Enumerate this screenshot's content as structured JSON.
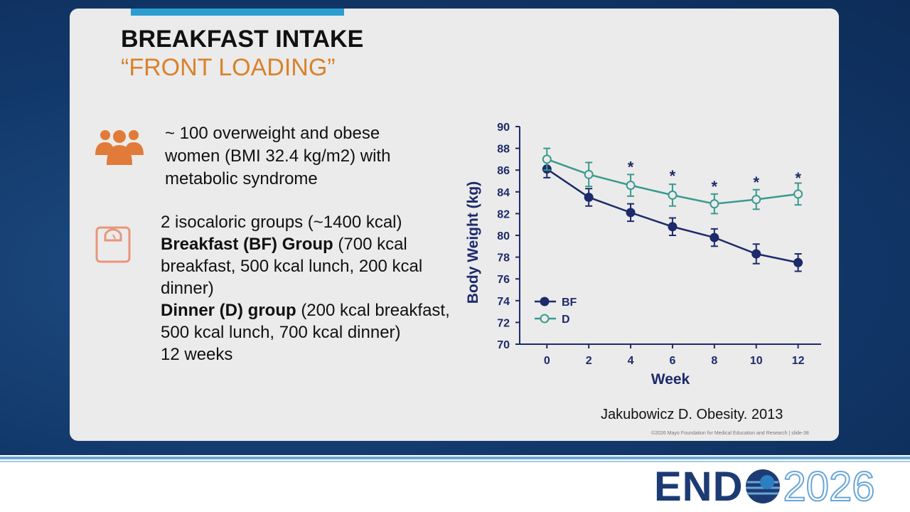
{
  "slide": {
    "title": "BREAKFAST INTAKE",
    "subtitle": "“FRONT LOADING”",
    "point1": "~ 100 overweight and obese women (BMI 32.4 kg/m2) with metabolic syndrome",
    "point2": {
      "intro": "2 isocaloric groups (~1400 kcal)",
      "group1": {
        "label": "Breakfast (BF) Group",
        "detail": "(700 kcal breakfast, 500 kcal lunch, 200 kcal dinner)"
      },
      "group2": {
        "label": "Dinner (D) group",
        "detail": "(200 kcal breakfast, 500 kcal lunch, 700 kcal dinner)"
      },
      "duration": "12 weeks"
    },
    "citation": "Jakubowicz D. Obesity. 2013",
    "copyright": "©2026 Mayo Foundation for Medical Education and Research  |  slide-38"
  },
  "brand": {
    "prefix": "END",
    "year": "2026"
  },
  "chart_data": {
    "type": "line",
    "x_label": "Week",
    "y_label": "Body Weight (kg)",
    "x": [
      0,
      2,
      4,
      6,
      8,
      10,
      12
    ],
    "series": [
      {
        "name": "BF",
        "color": "#1d2a6b",
        "marker": "filled",
        "values": [
          86.1,
          83.5,
          82.1,
          80.8,
          79.8,
          78.3,
          77.5
        ],
        "errors": [
          0.8,
          0.8,
          0.8,
          0.8,
          0.8,
          0.9,
          0.8
        ]
      },
      {
        "name": "D",
        "color": "#3a9a8e",
        "marker": "open",
        "values": [
          87.0,
          85.6,
          84.6,
          83.7,
          82.9,
          83.3,
          83.8
        ],
        "errors": [
          1.0,
          1.1,
          1.0,
          1.0,
          0.9,
          0.9,
          1.0
        ]
      }
    ],
    "annotations": [
      {
        "x": 4,
        "y": 86.3,
        "text": "*"
      },
      {
        "x": 6,
        "y": 85.5,
        "text": "*"
      },
      {
        "x": 8,
        "y": 84.5,
        "text": "*"
      },
      {
        "x": 10,
        "y": 84.9,
        "text": "*"
      },
      {
        "x": 12,
        "y": 85.3,
        "text": "*"
      }
    ],
    "xlim": [
      -1.3,
      13.1
    ],
    "ylim": [
      70,
      90
    ],
    "xticks": [
      0,
      2,
      4,
      6,
      8,
      10,
      12
    ],
    "yticks": [
      70,
      72,
      74,
      76,
      78,
      80,
      82,
      84,
      86,
      88,
      90
    ],
    "legend": "lower-left",
    "grid": false
  }
}
